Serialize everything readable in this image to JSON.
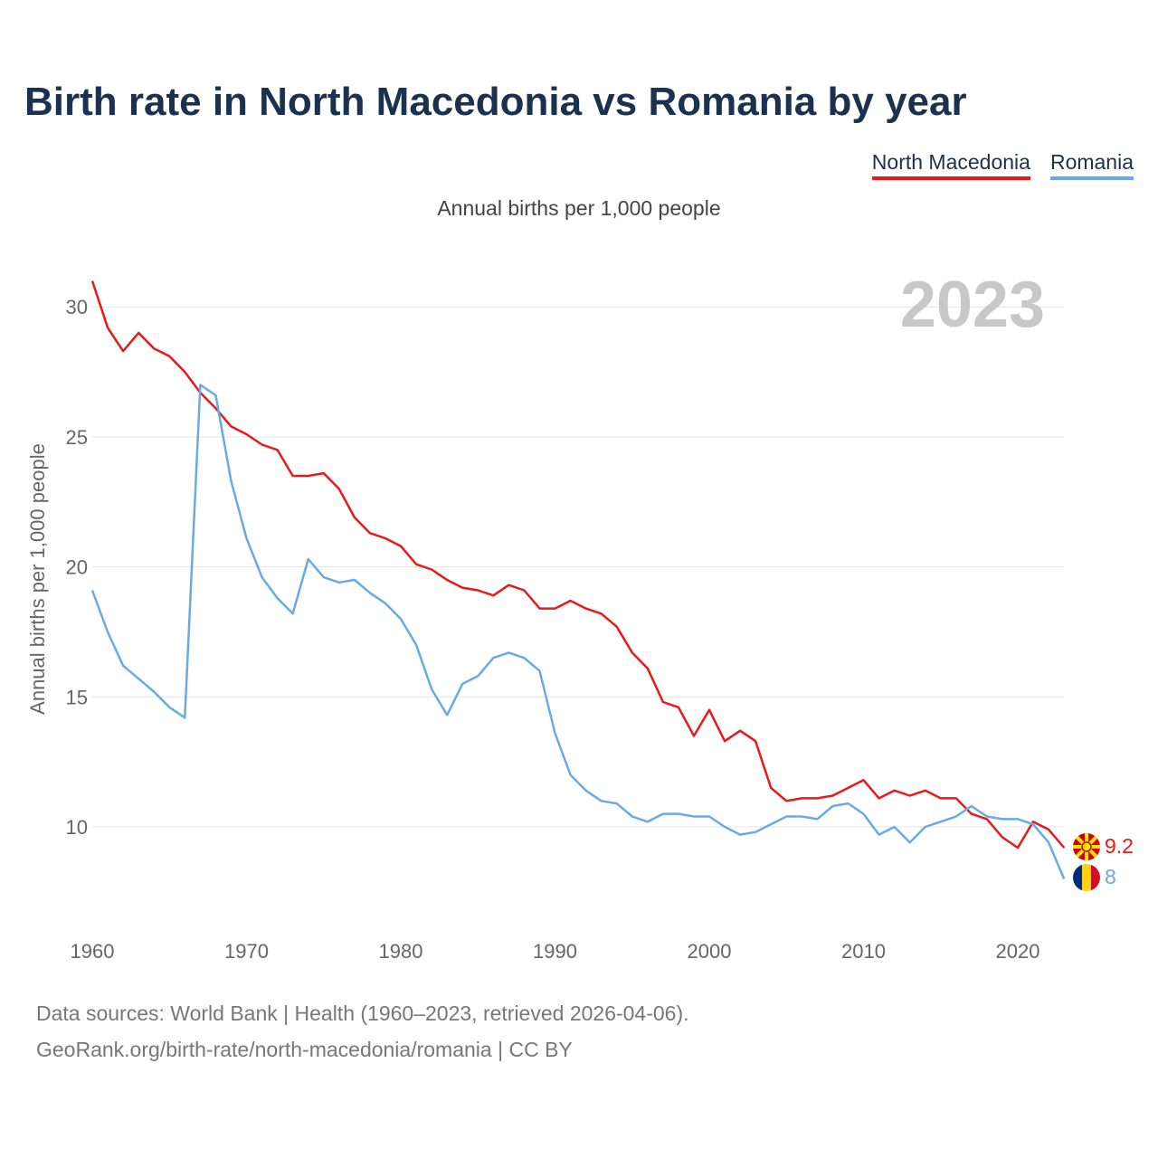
{
  "title": "Birth rate in North Macedonia vs Romania by year",
  "subtitle": "Annual births per 1,000 people",
  "year_label": "2023",
  "legend": [
    {
      "name": "North Macedonia",
      "color": "#e8191b"
    },
    {
      "name": "Romania",
      "color": "#6aaae4"
    }
  ],
  "source_line1": "Data sources: World Bank | Health (1960–2023, retrieved 2026-04-06).",
  "source_line2": "GeoRank.org/birth-rate/north-macedonia/romania | CC BY",
  "chart_data": {
    "type": "line",
    "title": "Birth rate in North Macedonia vs Romania by year",
    "xlabel": "",
    "ylabel": "Annual births per 1,000 people",
    "xlim": [
      1960,
      2024
    ],
    "ylim": [
      6.5,
      31
    ],
    "x_ticks": [
      1960,
      1970,
      1980,
      1990,
      2000,
      2010,
      2020
    ],
    "y_ticks": [
      10,
      15,
      20,
      25,
      30
    ],
    "grid": true,
    "x": [
      1960,
      1961,
      1962,
      1963,
      1964,
      1965,
      1966,
      1967,
      1968,
      1969,
      1970,
      1971,
      1972,
      1973,
      1974,
      1975,
      1976,
      1977,
      1978,
      1979,
      1980,
      1981,
      1982,
      1983,
      1984,
      1985,
      1986,
      1987,
      1988,
      1989,
      1990,
      1991,
      1992,
      1993,
      1994,
      1995,
      1996,
      1997,
      1998,
      1999,
      2000,
      2001,
      2002,
      2003,
      2004,
      2005,
      2006,
      2007,
      2008,
      2009,
      2010,
      2011,
      2012,
      2013,
      2014,
      2015,
      2016,
      2017,
      2018,
      2019,
      2020,
      2021,
      2022,
      2023
    ],
    "series": [
      {
        "name": "North Macedonia",
        "color": "#e8191b",
        "end_label": "9.2",
        "values": [
          31.0,
          29.2,
          28.3,
          29.0,
          28.4,
          28.1,
          27.5,
          26.7,
          26.1,
          25.4,
          25.1,
          24.7,
          24.5,
          23.5,
          23.5,
          23.6,
          23.0,
          21.9,
          21.3,
          21.1,
          20.8,
          20.1,
          19.9,
          19.5,
          19.2,
          19.1,
          18.9,
          19.3,
          19.1,
          18.4,
          18.4,
          18.7,
          18.4,
          18.2,
          17.7,
          16.7,
          16.1,
          14.8,
          14.6,
          13.5,
          14.5,
          13.3,
          13.7,
          13.3,
          11.5,
          11.0,
          11.1,
          11.1,
          11.2,
          11.5,
          11.8,
          11.1,
          11.4,
          11.2,
          11.4,
          11.1,
          11.1,
          10.5,
          10.3,
          9.6,
          9.2,
          10.2,
          9.9,
          9.2
        ]
      },
      {
        "name": "Romania",
        "color": "#6aaae4",
        "end_label": "8",
        "values": [
          19.1,
          17.5,
          16.2,
          15.7,
          15.2,
          14.6,
          14.2,
          27.0,
          26.6,
          23.3,
          21.1,
          19.6,
          18.8,
          18.2,
          20.3,
          19.6,
          19.4,
          19.5,
          19.0,
          18.6,
          18.0,
          17.0,
          15.3,
          14.3,
          15.5,
          15.8,
          16.5,
          16.7,
          16.5,
          16.0,
          13.6,
          12.0,
          11.4,
          11.0,
          10.9,
          10.4,
          10.2,
          10.5,
          10.5,
          10.4,
          10.4,
          10.0,
          9.7,
          9.8,
          10.1,
          10.4,
          10.4,
          10.3,
          10.8,
          10.9,
          10.5,
          9.7,
          10.0,
          9.4,
          10.0,
          10.2,
          10.4,
          10.8,
          10.4,
          10.3,
          10.3,
          10.1,
          9.4,
          8.0
        ]
      }
    ]
  }
}
